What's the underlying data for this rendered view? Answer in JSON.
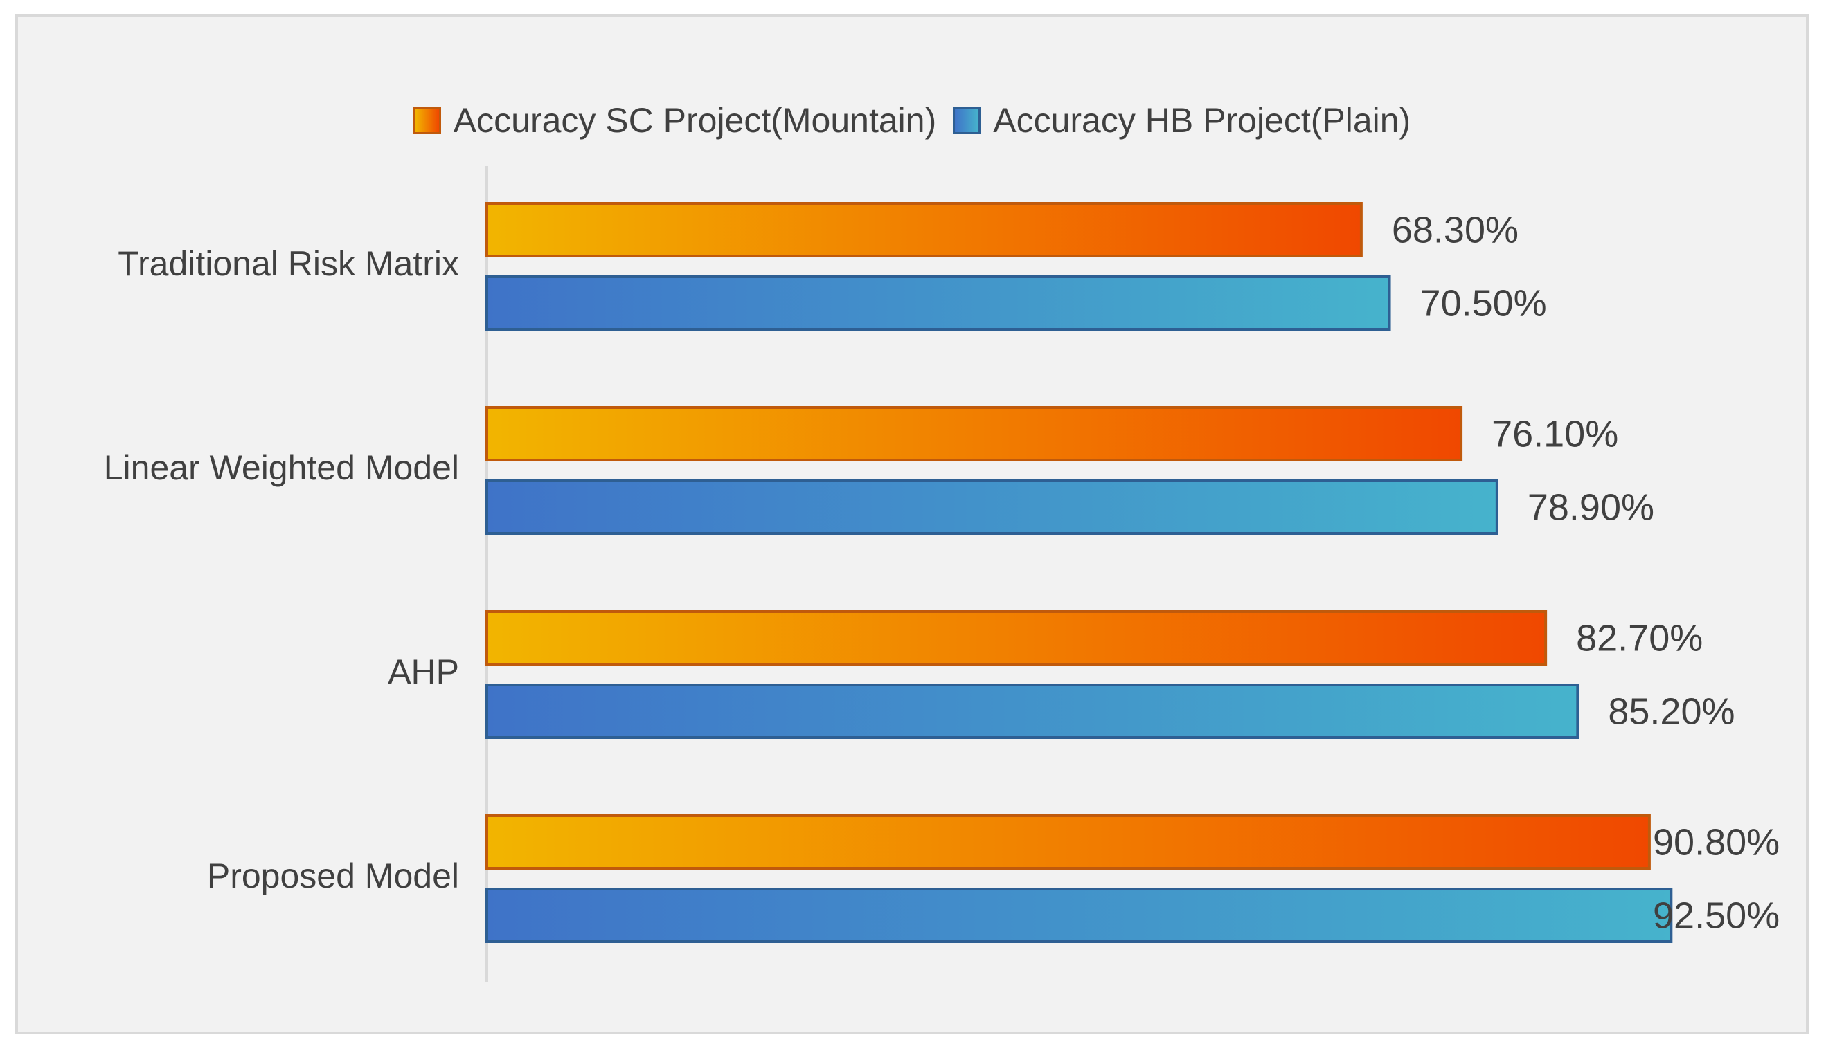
{
  "chart_data": {
    "type": "bar",
    "orientation": "horizontal",
    "title": "",
    "xlabel": "",
    "ylabel": "",
    "categories": [
      "Traditional Risk Matrix",
      "Linear Weighted Model",
      "AHP",
      "Proposed Model"
    ],
    "series": [
      {
        "name": "Accuracy SC Project(Mountain)",
        "values": [
          68.3,
          76.1,
          82.7,
          90.8
        ],
        "labels": [
          "68.30%",
          "76.10%",
          "82.70%",
          "90.80%"
        ],
        "color_start": "#f2b500",
        "color_end": "#f04800",
        "border": "#c05a0c"
      },
      {
        "name": "Accuracy HB Project(Plain)",
        "values": [
          70.5,
          78.9,
          85.2,
          92.5
        ],
        "labels": [
          "70.50%",
          "78.90%",
          "85.20%",
          "92.50%"
        ],
        "color_start": "#3f73c8",
        "color_end": "#46b3cc",
        "border": "#2e5f93"
      }
    ],
    "xlim": [
      0,
      100
    ],
    "grid": false,
    "axis_color": "#d9d9d9",
    "legend_position": "top",
    "background": "#f2f2f2"
  }
}
